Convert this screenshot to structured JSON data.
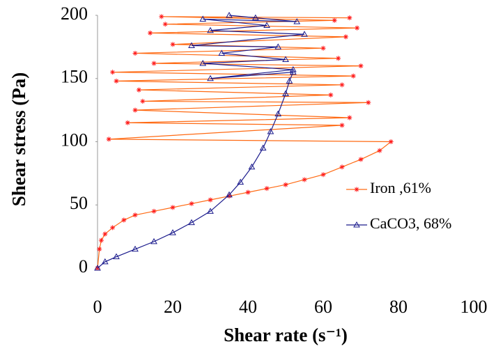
{
  "chart_data": {
    "type": "line",
    "x_label": "Shear rate (s⁻¹)",
    "y_label": "Shear stress (Pa)",
    "xlim": [
      0,
      100
    ],
    "ylim": [
      0,
      200
    ],
    "xticks": [
      0,
      20,
      40,
      60,
      80,
      100
    ],
    "yticks": [
      0,
      50,
      100,
      150,
      200
    ],
    "grid": false,
    "legend": "right",
    "series": [
      {
        "name": "Iron ,61%",
        "color": "#ff6a13",
        "marker_color": "#ff1a1a",
        "marker": "star",
        "x": [
          0,
          0.5,
          1,
          2,
          4,
          7,
          10,
          15,
          20,
          25,
          30,
          35,
          40,
          45,
          50,
          55,
          60,
          65,
          70,
          75,
          78,
          3,
          65,
          8,
          67,
          10,
          72,
          12,
          62,
          11,
          65,
          5,
          68,
          4,
          70,
          15,
          64,
          10,
          60,
          20,
          66,
          14,
          69,
          18,
          63,
          17,
          67
        ],
        "values": [
          0,
          15,
          22,
          27,
          32,
          38,
          42,
          45,
          48,
          51,
          54,
          57,
          60,
          63,
          66,
          70,
          74,
          80,
          86,
          93,
          100,
          102,
          113,
          115,
          119,
          125,
          131,
          132,
          137,
          141,
          145,
          148,
          152,
          155,
          160,
          162,
          166,
          170,
          174,
          177,
          183,
          186,
          190,
          193,
          196,
          199,
          198
        ]
      },
      {
        "name": "CaCO3, 68%",
        "color": "#1a1a8c",
        "marker_color": "#1a1a8c",
        "marker": "triangle",
        "x": [
          0,
          2,
          5,
          10,
          15,
          20,
          25,
          30,
          35,
          38,
          41,
          44,
          46,
          48,
          50,
          51,
          52,
          30,
          52,
          28,
          50,
          33,
          48,
          25,
          55,
          30,
          45,
          28,
          53,
          35,
          42
        ],
        "values": [
          0,
          5,
          9,
          15,
          21,
          28,
          36,
          45,
          58,
          68,
          80,
          95,
          108,
          122,
          138,
          148,
          155,
          150,
          157,
          162,
          165,
          170,
          175,
          176,
          185,
          188,
          192,
          197,
          195,
          200,
          198
        ]
      }
    ]
  }
}
